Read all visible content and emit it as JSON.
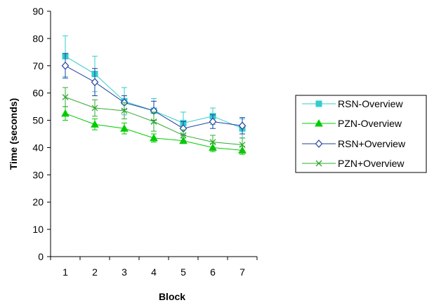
{
  "chart_data": {
    "type": "line",
    "title": "",
    "xlabel": "Block",
    "ylabel": "Time (seconds)",
    "x": [
      1,
      2,
      3,
      4,
      5,
      6,
      7
    ],
    "ylim": [
      0,
      90
    ],
    "yticks": [
      0,
      10,
      20,
      30,
      40,
      50,
      60,
      70,
      80,
      90
    ],
    "grid": false,
    "legend_position": "right",
    "series": [
      {
        "name": "RSN-Overview",
        "color": "#33CCCC",
        "marker": "filled-square",
        "values": [
          73.5,
          67,
          57,
          53.5,
          49,
          51.5,
          47
        ],
        "error": [
          7.5,
          6.5,
          5,
          4.5,
          4,
          3,
          3.5
        ]
      },
      {
        "name": "PZN-Overview",
        "color": "#00CC00",
        "marker": "filled-triangle",
        "values": [
          52.5,
          48.5,
          47,
          43.5,
          42.5,
          40,
          39
        ],
        "error": [
          2.5,
          2,
          2,
          1.5,
          1,
          1.5,
          1.5
        ]
      },
      {
        "name": "RSN+Overview",
        "color": "#1F3FA0",
        "marker": "open-diamond",
        "values": [
          70,
          64,
          56.5,
          53.5,
          47,
          49.5,
          48
        ],
        "error": [
          4.5,
          5,
          2.5,
          3.5,
          2.5,
          2.5,
          3
        ]
      },
      {
        "name": "PZN+Overview",
        "color": "#33AA33",
        "marker": "x",
        "values": [
          58.5,
          54.5,
          53.5,
          49.5,
          44.5,
          42,
          41
        ],
        "error": [
          3.5,
          3,
          3,
          3.5,
          2,
          2.5,
          2.5
        ]
      }
    ]
  }
}
